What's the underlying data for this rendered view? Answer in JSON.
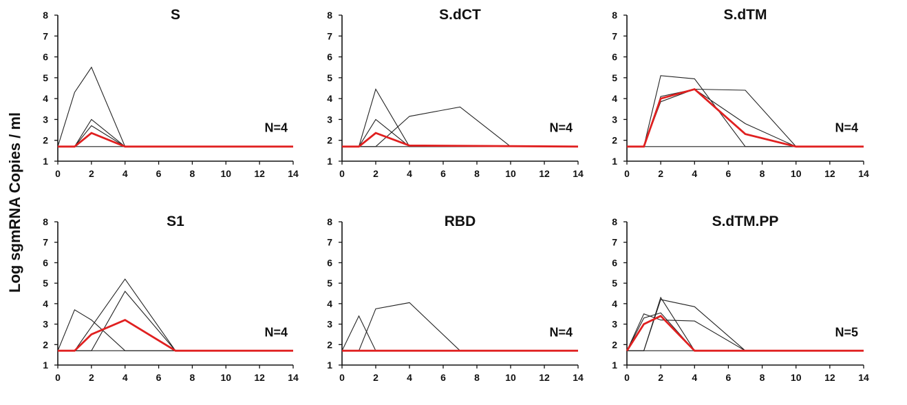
{
  "ylabel": "Log sgmRNA Copies / ml",
  "chart_data": [
    {
      "type": "line",
      "title": "S",
      "n_label": "N=4",
      "xlim": [
        0,
        14
      ],
      "ylim": [
        1,
        8
      ],
      "xticks": [
        0,
        2,
        4,
        6,
        8,
        10,
        12,
        14
      ],
      "yticks": [
        1,
        2,
        3,
        4,
        5,
        6,
        7,
        8
      ],
      "series": [
        {
          "x": [
            0,
            1,
            2,
            4,
            14
          ],
          "y": [
            1.7,
            4.3,
            5.5,
            1.7,
            1.7
          ]
        },
        {
          "x": [
            0,
            1,
            2,
            4,
            14
          ],
          "y": [
            1.7,
            1.7,
            3.0,
            1.7,
            1.7
          ]
        },
        {
          "x": [
            0,
            1,
            2,
            4,
            14
          ],
          "y": [
            1.7,
            1.7,
            2.7,
            1.7,
            1.7
          ]
        },
        {
          "x": [
            0,
            14
          ],
          "y": [
            1.7,
            1.7
          ]
        },
        {
          "mean": true,
          "x": [
            0,
            1,
            2,
            4,
            14
          ],
          "y": [
            1.7,
            1.7,
            2.35,
            1.7,
            1.7
          ]
        }
      ]
    },
    {
      "type": "line",
      "title": "S.dCT",
      "n_label": "N=4",
      "xlim": [
        0,
        14
      ],
      "ylim": [
        1,
        8
      ],
      "xticks": [
        0,
        2,
        4,
        6,
        8,
        10,
        12,
        14
      ],
      "yticks": [
        1,
        2,
        3,
        4,
        5,
        6,
        7,
        8
      ],
      "series": [
        {
          "x": [
            0,
            1,
            2,
            4,
            14
          ],
          "y": [
            1.7,
            1.7,
            4.45,
            1.7,
            1.7
          ]
        },
        {
          "x": [
            0,
            1,
            2,
            4,
            14
          ],
          "y": [
            1.7,
            1.7,
            3.0,
            1.7,
            1.7
          ]
        },
        {
          "x": [
            0,
            2,
            4,
            7,
            10,
            14
          ],
          "y": [
            1.7,
            1.7,
            3.15,
            3.6,
            1.7,
            1.7
          ]
        },
        {
          "x": [
            0,
            14
          ],
          "y": [
            1.7,
            1.7
          ]
        },
        {
          "mean": true,
          "x": [
            0,
            1,
            2,
            4,
            14
          ],
          "y": [
            1.7,
            1.7,
            2.35,
            1.75,
            1.7
          ]
        }
      ]
    },
    {
      "type": "line",
      "title": "S.dTM",
      "n_label": "N=4",
      "xlim": [
        0,
        14
      ],
      "ylim": [
        1,
        8
      ],
      "xticks": [
        0,
        2,
        4,
        6,
        8,
        10,
        12,
        14
      ],
      "yticks": [
        1,
        2,
        3,
        4,
        5,
        6,
        7,
        8
      ],
      "series": [
        {
          "x": [
            0,
            1,
            2,
            4,
            7,
            10,
            14
          ],
          "y": [
            1.7,
            1.7,
            5.1,
            4.95,
            1.7,
            1.7,
            1.7
          ]
        },
        {
          "x": [
            0,
            1,
            2,
            4,
            7,
            10,
            14
          ],
          "y": [
            1.7,
            1.7,
            4.1,
            4.45,
            4.4,
            1.7,
            1.7
          ]
        },
        {
          "x": [
            0,
            1,
            2,
            4,
            7,
            10,
            14
          ],
          "y": [
            1.7,
            1.7,
            3.85,
            4.45,
            2.8,
            1.7,
            1.7
          ]
        },
        {
          "x": [
            0,
            14
          ],
          "y": [
            1.7,
            1.7
          ]
        },
        {
          "mean": true,
          "x": [
            0,
            1,
            2,
            4,
            7,
            10,
            14
          ],
          "y": [
            1.7,
            1.7,
            4.0,
            4.45,
            2.3,
            1.7,
            1.7
          ]
        }
      ]
    },
    {
      "type": "line",
      "title": "S1",
      "n_label": "N=4",
      "xlim": [
        0,
        14
      ],
      "ylim": [
        1,
        8
      ],
      "xticks": [
        0,
        2,
        4,
        6,
        8,
        10,
        12,
        14
      ],
      "yticks": [
        1,
        2,
        3,
        4,
        5,
        6,
        7,
        8
      ],
      "series": [
        {
          "x": [
            0,
            1,
            2,
            4,
            14
          ],
          "y": [
            1.7,
            3.7,
            3.2,
            1.7,
            1.7
          ]
        },
        {
          "x": [
            0,
            1,
            4,
            7,
            14
          ],
          "y": [
            1.7,
            1.7,
            5.2,
            1.7,
            1.7
          ]
        },
        {
          "x": [
            0,
            2,
            4,
            7,
            14
          ],
          "y": [
            1.7,
            1.7,
            4.6,
            1.7,
            1.7
          ]
        },
        {
          "x": [
            0,
            14
          ],
          "y": [
            1.7,
            1.7
          ]
        },
        {
          "mean": true,
          "x": [
            0,
            1,
            2,
            4,
            7,
            14
          ],
          "y": [
            1.7,
            1.7,
            2.5,
            3.2,
            1.7,
            1.7
          ]
        }
      ]
    },
    {
      "type": "line",
      "title": "RBD",
      "n_label": "N=4",
      "xlim": [
        0,
        14
      ],
      "ylim": [
        1,
        8
      ],
      "xticks": [
        0,
        2,
        4,
        6,
        8,
        10,
        12,
        14
      ],
      "yticks": [
        1,
        2,
        3,
        4,
        5,
        6,
        7,
        8
      ],
      "series": [
        {
          "x": [
            0,
            1,
            2,
            14
          ],
          "y": [
            1.7,
            3.4,
            1.7,
            1.7
          ]
        },
        {
          "x": [
            0,
            1,
            2,
            4,
            7,
            14
          ],
          "y": [
            1.7,
            1.7,
            3.75,
            4.05,
            1.7,
            1.7
          ]
        },
        {
          "x": [
            0,
            14
          ],
          "y": [
            1.7,
            1.7
          ]
        },
        {
          "x": [
            0,
            14
          ],
          "y": [
            1.7,
            1.7
          ]
        },
        {
          "mean": true,
          "x": [
            0,
            14
          ],
          "y": [
            1.7,
            1.7
          ]
        }
      ]
    },
    {
      "type": "line",
      "title": "S.dTM.PP",
      "n_label": "N=5",
      "xlim": [
        0,
        14
      ],
      "ylim": [
        1,
        8
      ],
      "xticks": [
        0,
        2,
        4,
        6,
        8,
        10,
        12,
        14
      ],
      "yticks": [
        1,
        2,
        3,
        4,
        5,
        6,
        7,
        8
      ],
      "series": [
        {
          "x": [
            0,
            1,
            2,
            4,
            7,
            14
          ],
          "y": [
            1.7,
            3.5,
            3.2,
            3.15,
            1.7,
            1.7
          ]
        },
        {
          "x": [
            0,
            1,
            2,
            4,
            7,
            14
          ],
          "y": [
            1.7,
            1.7,
            4.2,
            3.85,
            1.7,
            1.7
          ]
        },
        {
          "x": [
            0,
            1,
            2,
            4,
            14
          ],
          "y": [
            1.7,
            1.7,
            4.3,
            1.7,
            1.7
          ]
        },
        {
          "x": [
            0,
            1,
            2,
            4,
            14
          ],
          "y": [
            1.7,
            3.3,
            3.55,
            1.7,
            1.7
          ]
        },
        {
          "x": [
            0,
            14
          ],
          "y": [
            1.7,
            1.7
          ]
        },
        {
          "mean": true,
          "x": [
            0,
            1,
            2,
            4,
            14
          ],
          "y": [
            1.7,
            3.0,
            3.4,
            1.7,
            1.7
          ]
        }
      ]
    }
  ],
  "colors": {
    "individual": "#222222",
    "mean": "#e02020",
    "axis": "#111111"
  }
}
